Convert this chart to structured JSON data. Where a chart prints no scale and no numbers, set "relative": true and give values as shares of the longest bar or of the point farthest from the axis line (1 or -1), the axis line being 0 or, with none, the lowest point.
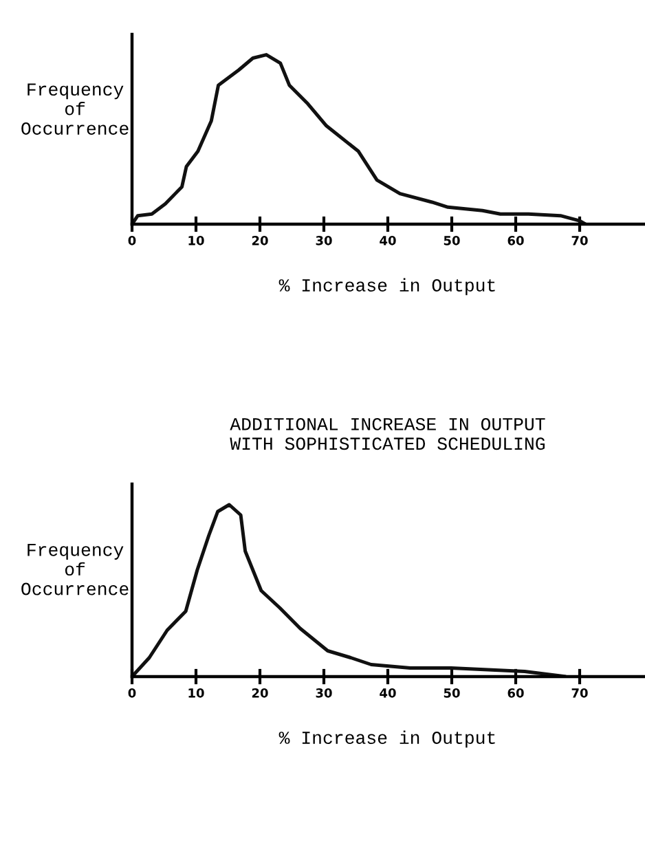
{
  "chart_data": [
    {
      "type": "line",
      "relative": true,
      "xlabel": "% Increase in Output",
      "ylabel": "Frequency\nof\nOccurrence",
      "xlim": [
        0,
        80
      ],
      "xticks": [
        0,
        10,
        20,
        30,
        40,
        50,
        60,
        70
      ],
      "grid": false,
      "marker": "none",
      "line_style": "solid",
      "series": [
        {
          "color": "#111111",
          "x": [
            0,
            0.9,
            3.1,
            5.2,
            7.8,
            8.5,
            10.3,
            12.4,
            13.5,
            16.7,
            18.9,
            21.0,
            23.2,
            24.6,
            27.5,
            30.4,
            35.4,
            38.3,
            41.9,
            46.9,
            49.4,
            54.8,
            57.6,
            62.0,
            67.0,
            70.0,
            70.9
          ],
          "values": [
            0,
            0.05,
            0.06,
            0.12,
            0.22,
            0.34,
            0.43,
            0.61,
            0.82,
            0.91,
            0.98,
            1.0,
            0.95,
            0.82,
            0.71,
            0.58,
            0.43,
            0.26,
            0.18,
            0.13,
            0.1,
            0.08,
            0.06,
            0.06,
            0.05,
            0.02,
            0
          ]
        }
      ]
    },
    {
      "type": "line",
      "relative": true,
      "title": "ADDITIONAL INCREASE IN OUTPUT\nWITH SOPHISTICATED SCHEDULING",
      "xlabel": "% Increase in Output",
      "ylabel": "Frequency\nof\nOccurrence",
      "xlim": [
        0,
        80
      ],
      "xticks": [
        0,
        10,
        20,
        30,
        40,
        50,
        60,
        70
      ],
      "grid": false,
      "marker": "none",
      "line_style": "solid",
      "series": [
        {
          "color": "#111111",
          "x": [
            0,
            2.7,
            5.5,
            8.4,
            10.2,
            12.0,
            13.4,
            15.2,
            17.0,
            17.7,
            20.2,
            23.1,
            26.3,
            30.6,
            34.2,
            37.4,
            43.5,
            49.9,
            61.4,
            66.8,
            67.8
          ],
          "values": [
            0,
            0.11,
            0.27,
            0.38,
            0.62,
            0.82,
            0.96,
            1.0,
            0.94,
            0.73,
            0.5,
            0.4,
            0.28,
            0.15,
            0.11,
            0.07,
            0.05,
            0.05,
            0.03,
            0.005,
            0
          ]
        }
      ]
    }
  ]
}
